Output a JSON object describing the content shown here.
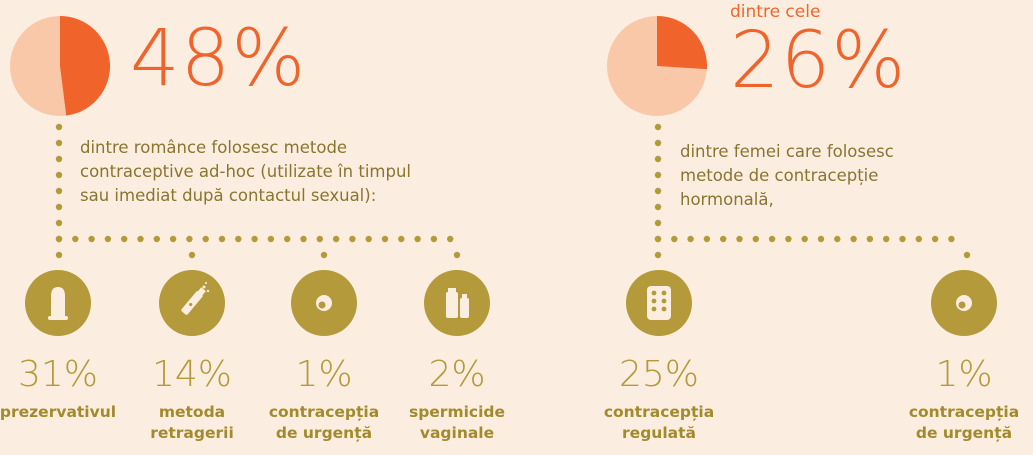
{
  "colors": {
    "background": "#fbeee0",
    "accent": "#f0642c",
    "pie_light": "#f9c8a8",
    "gold": "#b49a3a",
    "text": "#8a7530"
  },
  "left": {
    "pie_fraction": 0.48,
    "big_percent": "48%",
    "description": [
      "dintre românce folosesc metode",
      "contraceptive ad-hoc (utilizate în timpul",
      "sau imediat după contactul sexual):"
    ],
    "items": [
      {
        "icon": "condom-icon",
        "percent": "31%",
        "label": [
          "prezervativul"
        ]
      },
      {
        "icon": "withdrawal-icon",
        "percent": "14%",
        "label": [
          "metoda",
          "retragerii"
        ]
      },
      {
        "icon": "emergency-pill-icon",
        "percent": "1%",
        "label": [
          "contracepția",
          "de urgență"
        ]
      },
      {
        "icon": "spermicide-icon",
        "percent": "2%",
        "label": [
          "spermicide",
          "vaginale"
        ]
      }
    ]
  },
  "right": {
    "prefix": "dintre cele",
    "pie_fraction": 0.26,
    "big_percent": "26%",
    "description": [
      "dintre femei care folosesc",
      "metode de contracepție",
      "hormonală,"
    ],
    "items": [
      {
        "icon": "pill-pack-icon",
        "percent": "25%",
        "label": [
          "contracepția",
          "regulată"
        ]
      },
      {
        "icon": "emergency-pill-icon",
        "percent": "1%",
        "label": [
          "contracepția",
          "de urgență"
        ]
      }
    ]
  }
}
